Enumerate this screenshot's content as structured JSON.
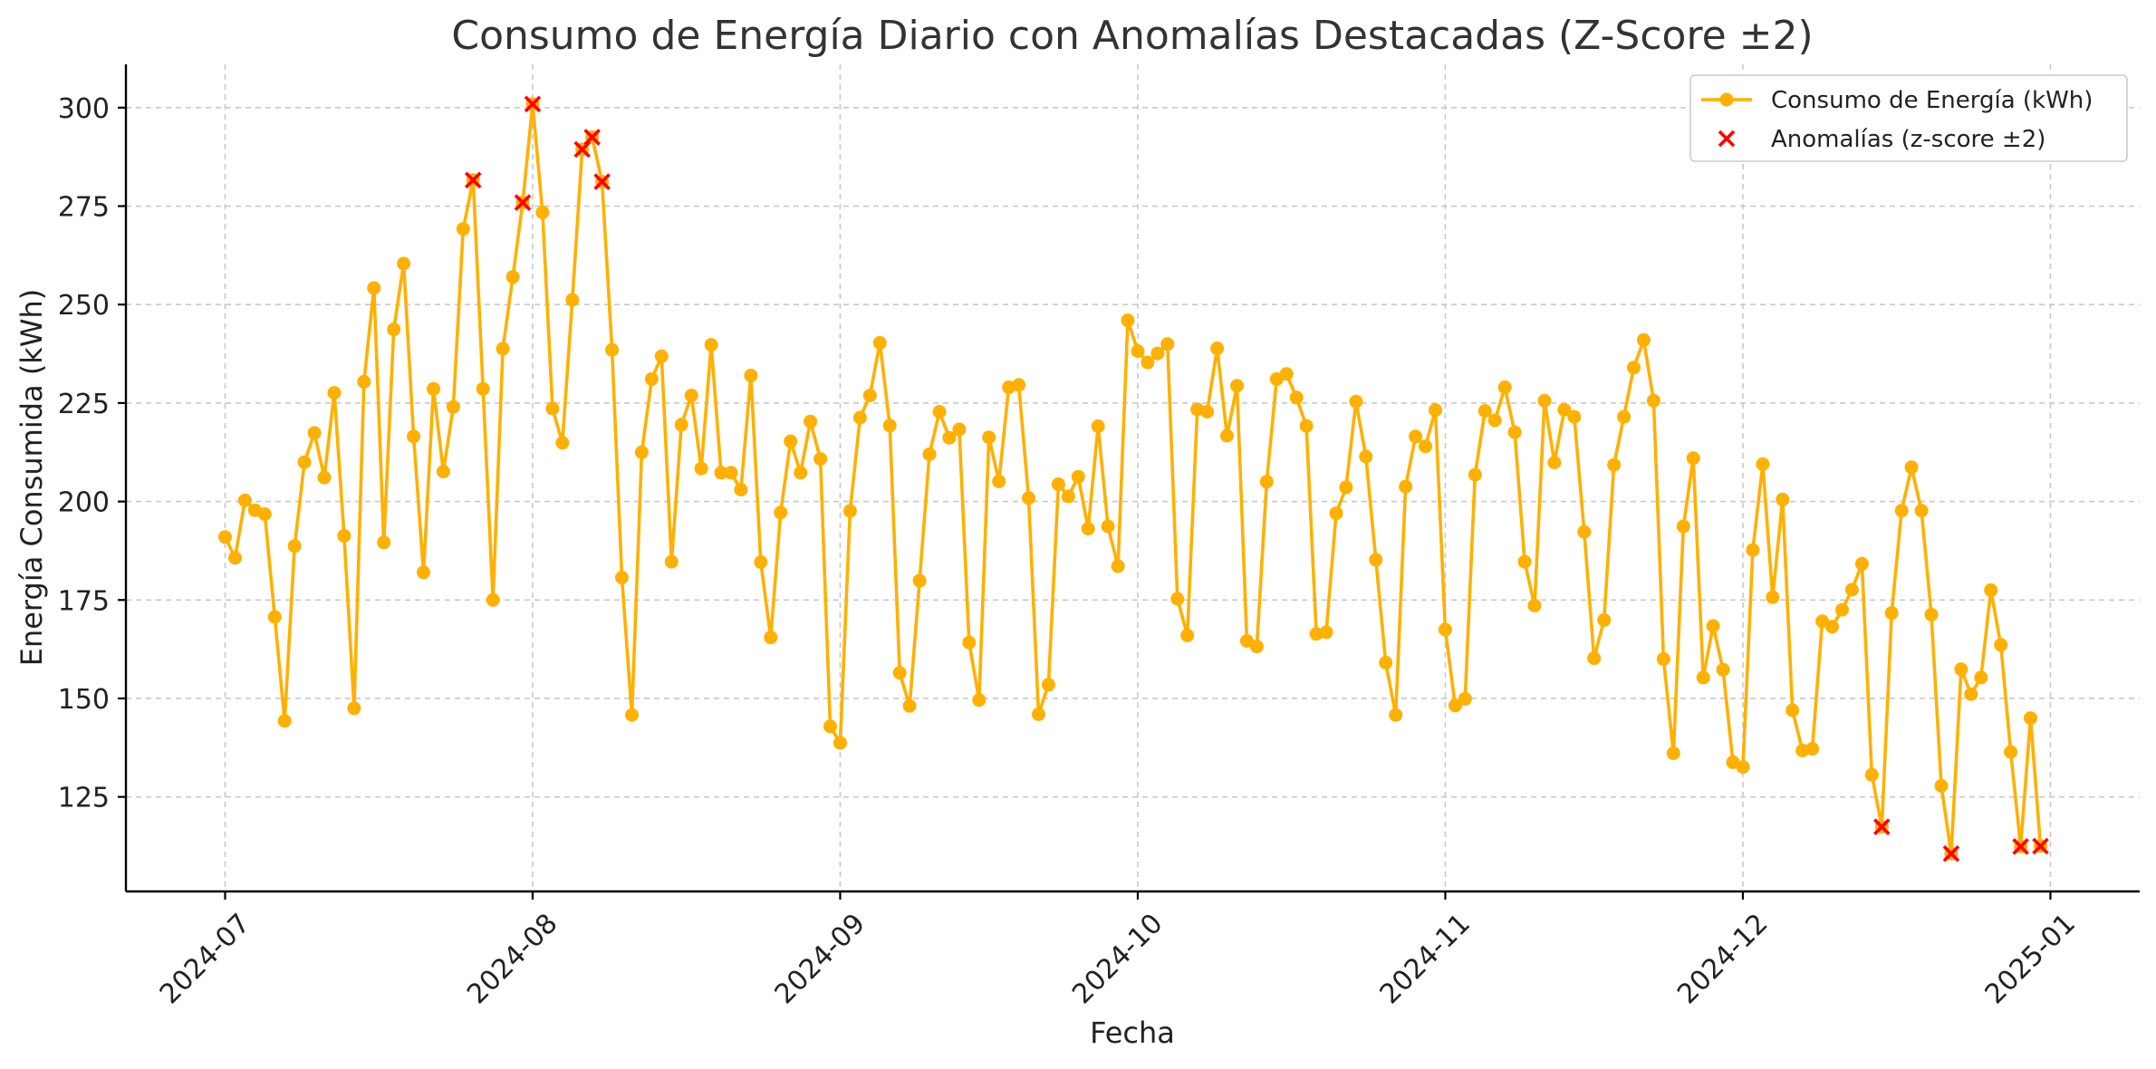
{
  "chart_data": {
    "type": "line",
    "title": "Consumo de Energía Diario con Anomalías Destacadas (Z-Score ±2)",
    "xlabel": "Fecha",
    "ylabel": "Energía Consumida (kWh)",
    "x_range": [
      "2024-06-21",
      "2025-01-10"
    ],
    "ylim": [
      101,
      311
    ],
    "x_ticks": [
      "2024-07-01",
      "2024-08-01",
      "2024-09-01",
      "2024-10-01",
      "2024-11-01",
      "2024-12-01",
      "2025-01-01"
    ],
    "x_tick_labels": [
      "2024-07",
      "2024-08",
      "2024-09",
      "2024-10",
      "2024-11",
      "2024-12",
      "2025-01"
    ],
    "y_ticks": [
      125,
      150,
      175,
      200,
      225,
      250,
      275,
      300
    ],
    "grid": true,
    "legend_position": "top-right",
    "colors": {
      "line": "#FFB000",
      "anomaly": "#FF0000"
    },
    "series": [
      {
        "name": "Consumo de Energía (kWh)",
        "kind": "line-marker",
        "points": [
          [
            "2024-07-01",
            191.0
          ],
          [
            "2024-07-02",
            185.7
          ],
          [
            "2024-07-03",
            200.3
          ],
          [
            "2024-07-04",
            197.8
          ],
          [
            "2024-07-05",
            196.8
          ],
          [
            "2024-07-06",
            170.7
          ],
          [
            "2024-07-07",
            144.3
          ],
          [
            "2024-07-08",
            188.7
          ],
          [
            "2024-07-09",
            210.0
          ],
          [
            "2024-07-10",
            217.4
          ],
          [
            "2024-07-11",
            206.1
          ],
          [
            "2024-07-12",
            227.6
          ],
          [
            "2024-07-13",
            191.3
          ],
          [
            "2024-07-14",
            147.5
          ],
          [
            "2024-07-15",
            230.4
          ],
          [
            "2024-07-16",
            254.2
          ],
          [
            "2024-07-17",
            189.6
          ],
          [
            "2024-07-18",
            243.7
          ],
          [
            "2024-07-19",
            260.4
          ],
          [
            "2024-07-20",
            216.5
          ],
          [
            "2024-07-21",
            182.0
          ],
          [
            "2024-07-22",
            228.6
          ],
          [
            "2024-07-23",
            207.6
          ],
          [
            "2024-07-24",
            224.0
          ],
          [
            "2024-07-25",
            269.2
          ],
          [
            "2024-07-26",
            281.6
          ],
          [
            "2024-07-27",
            228.6
          ],
          [
            "2024-07-28",
            175.0
          ],
          [
            "2024-07-29",
            238.8
          ],
          [
            "2024-07-30",
            257.0
          ],
          [
            "2024-07-31",
            275.9
          ],
          [
            "2024-08-01",
            300.9
          ],
          [
            "2024-08-02",
            273.4
          ],
          [
            "2024-08-03",
            223.6
          ],
          [
            "2024-08-04",
            214.9
          ],
          [
            "2024-08-05",
            251.2
          ],
          [
            "2024-08-06",
            289.4
          ],
          [
            "2024-08-07",
            292.5
          ],
          [
            "2024-08-08",
            281.2
          ],
          [
            "2024-08-09",
            238.5
          ],
          [
            "2024-08-10",
            180.7
          ],
          [
            "2024-08-11",
            145.8
          ],
          [
            "2024-08-12",
            212.5
          ],
          [
            "2024-08-13",
            231.1
          ],
          [
            "2024-08-14",
            236.9
          ],
          [
            "2024-08-15",
            184.7
          ],
          [
            "2024-08-16",
            219.5
          ],
          [
            "2024-08-17",
            226.9
          ],
          [
            "2024-08-18",
            208.4
          ],
          [
            "2024-08-19",
            239.8
          ],
          [
            "2024-08-20",
            207.3
          ],
          [
            "2024-08-21",
            207.3
          ],
          [
            "2024-08-22",
            203.0
          ],
          [
            "2024-08-23",
            232.0
          ],
          [
            "2024-08-24",
            184.6
          ],
          [
            "2024-08-25",
            165.5
          ],
          [
            "2024-08-26",
            197.2
          ],
          [
            "2024-08-27",
            215.3
          ],
          [
            "2024-08-28",
            207.3
          ],
          [
            "2024-08-29",
            220.3
          ],
          [
            "2024-08-30",
            210.8
          ],
          [
            "2024-08-31",
            142.9
          ],
          [
            "2024-09-01",
            138.7
          ],
          [
            "2024-09-02",
            197.6
          ],
          [
            "2024-09-03",
            221.3
          ],
          [
            "2024-09-04",
            226.9
          ],
          [
            "2024-09-05",
            240.3
          ],
          [
            "2024-09-06",
            219.3
          ],
          [
            "2024-09-07",
            156.5
          ],
          [
            "2024-09-08",
            148.1
          ],
          [
            "2024-09-09",
            179.9
          ],
          [
            "2024-09-10",
            212.0
          ],
          [
            "2024-09-11",
            222.8
          ],
          [
            "2024-09-12",
            216.2
          ],
          [
            "2024-09-13",
            218.3
          ],
          [
            "2024-09-14",
            164.2
          ],
          [
            "2024-09-15",
            149.6
          ],
          [
            "2024-09-16",
            216.3
          ],
          [
            "2024-09-17",
            205.1
          ],
          [
            "2024-09-18",
            229.0
          ],
          [
            "2024-09-19",
            229.6
          ],
          [
            "2024-09-20",
            200.9
          ],
          [
            "2024-09-21",
            146.0
          ],
          [
            "2024-09-22",
            153.5
          ],
          [
            "2024-09-23",
            204.4
          ],
          [
            "2024-09-24",
            201.3
          ],
          [
            "2024-09-25",
            206.3
          ],
          [
            "2024-09-26",
            193.1
          ],
          [
            "2024-09-27",
            219.1
          ],
          [
            "2024-09-28",
            193.7
          ],
          [
            "2024-09-29",
            183.6
          ],
          [
            "2024-09-30",
            246.0
          ],
          [
            "2024-10-01",
            238.2
          ],
          [
            "2024-10-02",
            235.3
          ],
          [
            "2024-10-03",
            237.6
          ],
          [
            "2024-10-04",
            240.0
          ],
          [
            "2024-10-05",
            175.3
          ],
          [
            "2024-10-06",
            166.0
          ],
          [
            "2024-10-07",
            223.4
          ],
          [
            "2024-10-08",
            222.8
          ],
          [
            "2024-10-09",
            238.9
          ],
          [
            "2024-10-10",
            216.7
          ],
          [
            "2024-10-11",
            229.4
          ],
          [
            "2024-10-12",
            164.6
          ],
          [
            "2024-10-13",
            163.2
          ],
          [
            "2024-10-14",
            205.0
          ],
          [
            "2024-10-15",
            231.1
          ],
          [
            "2024-10-16",
            232.4
          ],
          [
            "2024-10-17",
            226.4
          ],
          [
            "2024-10-18",
            219.2
          ],
          [
            "2024-10-19",
            166.4
          ],
          [
            "2024-10-20",
            166.8
          ],
          [
            "2024-10-21",
            197.0
          ],
          [
            "2024-10-22",
            203.6
          ],
          [
            "2024-10-23",
            225.4
          ],
          [
            "2024-10-24",
            211.4
          ],
          [
            "2024-10-25",
            185.2
          ],
          [
            "2024-10-26",
            159.1
          ],
          [
            "2024-10-27",
            145.8
          ],
          [
            "2024-10-28",
            203.8
          ],
          [
            "2024-10-29",
            216.5
          ],
          [
            "2024-10-30",
            214.0
          ],
          [
            "2024-10-31",
            223.2
          ],
          [
            "2024-11-01",
            167.5
          ],
          [
            "2024-11-02",
            148.2
          ],
          [
            "2024-11-03",
            149.9
          ],
          [
            "2024-11-04",
            206.8
          ],
          [
            "2024-11-05",
            223.0
          ],
          [
            "2024-11-06",
            220.6
          ],
          [
            "2024-11-07",
            229.0
          ],
          [
            "2024-11-08",
            217.6
          ],
          [
            "2024-11-09",
            184.7
          ],
          [
            "2024-11-10",
            173.6
          ],
          [
            "2024-11-11",
            225.6
          ],
          [
            "2024-11-12",
            209.9
          ],
          [
            "2024-11-13",
            223.3
          ],
          [
            "2024-11-14",
            221.5
          ],
          [
            "2024-11-15",
            192.3
          ],
          [
            "2024-11-16",
            160.2
          ],
          [
            "2024-11-17",
            169.9
          ],
          [
            "2024-11-18",
            209.3
          ],
          [
            "2024-11-19",
            221.5
          ],
          [
            "2024-11-20",
            234.0
          ],
          [
            "2024-11-21",
            241.0
          ],
          [
            "2024-11-22",
            225.6
          ],
          [
            "2024-11-23",
            160.0
          ],
          [
            "2024-11-24",
            136.1
          ],
          [
            "2024-11-25",
            193.7
          ],
          [
            "2024-11-26",
            211.0
          ],
          [
            "2024-11-27",
            155.3
          ],
          [
            "2024-11-28",
            168.4
          ],
          [
            "2024-11-29",
            157.3
          ],
          [
            "2024-11-30",
            133.8
          ],
          [
            "2024-12-01",
            132.6
          ],
          [
            "2024-12-02",
            187.7
          ],
          [
            "2024-12-03",
            209.5
          ],
          [
            "2024-12-04",
            175.7
          ],
          [
            "2024-12-05",
            200.5
          ],
          [
            "2024-12-06",
            147.0
          ],
          [
            "2024-12-07",
            136.8
          ],
          [
            "2024-12-08",
            137.2
          ],
          [
            "2024-12-09",
            169.6
          ],
          [
            "2024-12-10",
            168.2
          ],
          [
            "2024-12-11",
            172.5
          ],
          [
            "2024-12-12",
            177.6
          ],
          [
            "2024-12-13",
            184.2
          ],
          [
            "2024-12-14",
            130.6
          ],
          [
            "2024-12-15",
            117.4
          ],
          [
            "2024-12-16",
            171.7
          ],
          [
            "2024-12-17",
            197.7
          ],
          [
            "2024-12-18",
            208.7
          ],
          [
            "2024-12-19",
            197.7
          ],
          [
            "2024-12-20",
            171.3
          ],
          [
            "2024-12-21",
            127.8
          ],
          [
            "2024-12-22",
            110.6
          ],
          [
            "2024-12-23",
            157.4
          ],
          [
            "2024-12-24",
            151.1
          ],
          [
            "2024-12-25",
            155.3
          ],
          [
            "2024-12-26",
            177.5
          ],
          [
            "2024-12-27",
            163.6
          ],
          [
            "2024-12-28",
            136.4
          ],
          [
            "2024-12-29",
            112.4
          ],
          [
            "2024-12-30",
            145.0
          ],
          [
            "2024-12-31",
            112.5
          ]
        ]
      },
      {
        "name": "Anomalías (z-score ±2)",
        "kind": "scatter-x",
        "points": [
          [
            "2024-07-26",
            281.6
          ],
          [
            "2024-07-31",
            275.9
          ],
          [
            "2024-08-01",
            300.9
          ],
          [
            "2024-08-06",
            289.4
          ],
          [
            "2024-08-07",
            292.5
          ],
          [
            "2024-08-08",
            281.2
          ],
          [
            "2024-12-15",
            117.4
          ],
          [
            "2024-12-22",
            110.6
          ],
          [
            "2024-12-29",
            112.4
          ],
          [
            "2024-12-31",
            112.5
          ]
        ]
      }
    ]
  }
}
